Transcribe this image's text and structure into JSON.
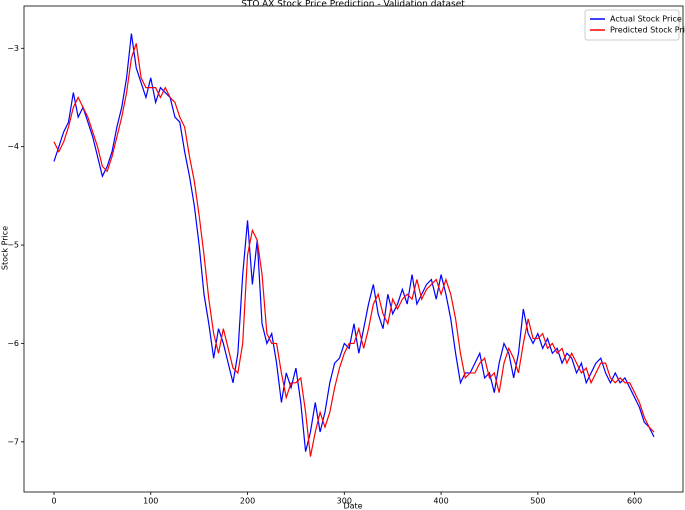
{
  "chart_data": {
    "type": "line",
    "title": "STO.AX Stock Price Prediction - Validation dataset",
    "x_label": "Date",
    "y_label": "Stock Price",
    "x": [
      0,
      5,
      10,
      15,
      20,
      25,
      30,
      35,
      40,
      45,
      50,
      55,
      60,
      65,
      70,
      75,
      80,
      85,
      90,
      95,
      100,
      105,
      110,
      115,
      120,
      125,
      130,
      135,
      140,
      145,
      150,
      155,
      160,
      165,
      170,
      175,
      180,
      185,
      190,
      195,
      200,
      205,
      210,
      215,
      220,
      225,
      230,
      235,
      240,
      245,
      250,
      255,
      260,
      265,
      270,
      275,
      280,
      285,
      290,
      295,
      300,
      305,
      310,
      315,
      320,
      325,
      330,
      335,
      340,
      345,
      350,
      355,
      360,
      365,
      370,
      375,
      380,
      385,
      390,
      395,
      400,
      405,
      410,
      415,
      420,
      425,
      430,
      435,
      440,
      445,
      450,
      455,
      460,
      465,
      470,
      475,
      480,
      485,
      490,
      495,
      500,
      505,
      510,
      515,
      520,
      525,
      530,
      535,
      540,
      545,
      550,
      555,
      560,
      565,
      570,
      575,
      580,
      585,
      590,
      595,
      600,
      605,
      610,
      615,
      620
    ],
    "series": [
      {
        "name": "Actual Stock Price",
        "color": "#0000ff",
        "values": [
          -4.15,
          -4.0,
          -3.85,
          -3.75,
          -3.45,
          -3.7,
          -3.6,
          -3.75,
          -3.9,
          -4.1,
          -4.3,
          -4.2,
          -4.05,
          -3.8,
          -3.6,
          -3.3,
          -2.85,
          -3.2,
          -3.35,
          -3.5,
          -3.3,
          -3.55,
          -3.4,
          -3.45,
          -3.5,
          -3.7,
          -3.75,
          -4.05,
          -4.3,
          -4.6,
          -5.0,
          -5.5,
          -5.8,
          -6.15,
          -5.85,
          -6.0,
          -6.2,
          -6.4,
          -6.1,
          -5.3,
          -4.75,
          -5.4,
          -4.95,
          -5.8,
          -6.0,
          -5.9,
          -6.2,
          -6.6,
          -6.3,
          -6.45,
          -6.25,
          -6.6,
          -7.1,
          -6.9,
          -6.6,
          -6.9,
          -6.7,
          -6.4,
          -6.2,
          -6.15,
          -6.0,
          -6.05,
          -5.8,
          -6.1,
          -5.85,
          -5.6,
          -5.4,
          -5.7,
          -5.85,
          -5.5,
          -5.7,
          -5.6,
          -5.45,
          -5.6,
          -5.3,
          -5.6,
          -5.5,
          -5.4,
          -5.35,
          -5.55,
          -5.3,
          -5.5,
          -5.75,
          -6.1,
          -6.4,
          -6.3,
          -6.3,
          -6.2,
          -6.1,
          -6.35,
          -6.3,
          -6.5,
          -6.2,
          -6.0,
          -6.1,
          -6.35,
          -6.1,
          -5.65,
          -5.9,
          -6.0,
          -5.9,
          -6.05,
          -5.95,
          -6.1,
          -6.05,
          -6.2,
          -6.1,
          -6.15,
          -6.3,
          -6.2,
          -6.4,
          -6.3,
          -6.2,
          -6.15,
          -6.3,
          -6.4,
          -6.3,
          -6.4,
          -6.35,
          -6.45,
          -6.55,
          -6.65,
          -6.8,
          -6.85,
          -6.95
        ]
      },
      {
        "name": "Predicted Stock Price",
        "color": "#ff0000",
        "values": [
          -3.95,
          -4.05,
          -3.95,
          -3.8,
          -3.6,
          -3.5,
          -3.6,
          -3.7,
          -3.85,
          -4.0,
          -4.2,
          -4.25,
          -4.1,
          -3.9,
          -3.7,
          -3.45,
          -3.1,
          -2.95,
          -3.3,
          -3.4,
          -3.4,
          -3.4,
          -3.5,
          -3.4,
          -3.5,
          -3.55,
          -3.7,
          -3.8,
          -4.1,
          -4.35,
          -4.7,
          -5.1,
          -5.55,
          -5.9,
          -6.1,
          -5.85,
          -6.05,
          -6.25,
          -6.3,
          -6.0,
          -5.1,
          -4.85,
          -4.95,
          -5.3,
          -5.9,
          -6.0,
          -6.0,
          -6.3,
          -6.55,
          -6.4,
          -6.4,
          -6.35,
          -6.7,
          -7.15,
          -6.9,
          -6.7,
          -6.85,
          -6.7,
          -6.45,
          -6.25,
          -6.1,
          -6.0,
          -6.0,
          -5.85,
          -6.05,
          -5.85,
          -5.6,
          -5.5,
          -5.7,
          -5.8,
          -5.55,
          -5.65,
          -5.55,
          -5.5,
          -5.55,
          -5.35,
          -5.55,
          -5.45,
          -5.4,
          -5.35,
          -5.5,
          -5.35,
          -5.5,
          -5.75,
          -6.1,
          -6.35,
          -6.3,
          -6.3,
          -6.2,
          -6.15,
          -6.35,
          -6.3,
          -6.5,
          -6.2,
          -6.05,
          -6.15,
          -6.3,
          -6.0,
          -5.75,
          -5.95,
          -5.95,
          -5.9,
          -6.05,
          -6.0,
          -6.1,
          -6.05,
          -6.2,
          -6.1,
          -6.2,
          -6.3,
          -6.25,
          -6.4,
          -6.3,
          -6.2,
          -6.2,
          -6.35,
          -6.4,
          -6.35,
          -6.4,
          -6.4,
          -6.5,
          -6.6,
          -6.75,
          -6.85,
          -6.9
        ]
      }
    ],
    "xlim": [
      -31,
      650
    ],
    "ylim": [
      -7.51,
      -2.57
    ],
    "xticks": [
      0,
      100,
      200,
      300,
      400,
      500,
      600
    ],
    "yticks": [
      {
        "value": -7,
        "label": "−7"
      },
      {
        "value": -6,
        "label": "−6"
      },
      {
        "value": -5,
        "label": "−5"
      },
      {
        "value": -4,
        "label": "−4"
      },
      {
        "value": -3,
        "label": "−3"
      }
    ],
    "legend": "upper right"
  }
}
